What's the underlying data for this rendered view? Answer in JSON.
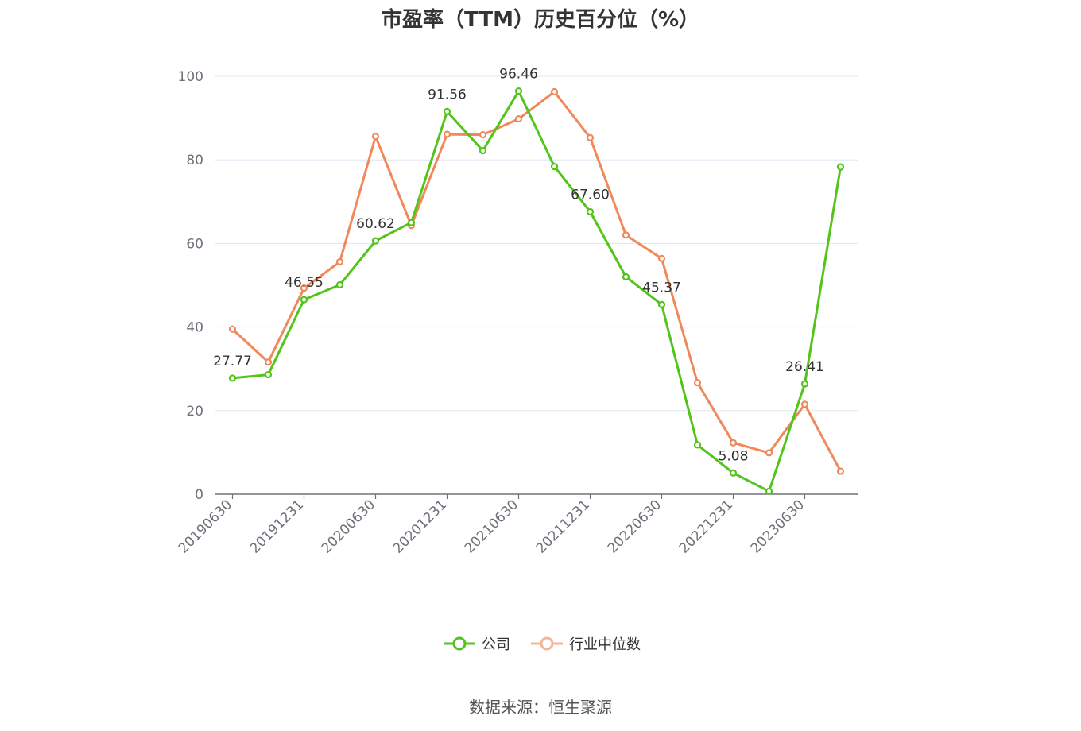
{
  "chart_data": {
    "type": "line",
    "title": "市盈率（TTM）历史百分位（%）",
    "categories": [
      "20190630",
      "20190930",
      "20191231",
      "20200331",
      "20200630",
      "20200930",
      "20201231",
      "20210331",
      "20210630",
      "20210930",
      "20211231",
      "20220331",
      "20220630",
      "20220930",
      "20221231",
      "20230331",
      "20230630",
      "20230930"
    ],
    "tick_labels": [
      "20190630",
      "20191231",
      "20200630",
      "20201231",
      "20210630",
      "20211231",
      "20220630",
      "20221231",
      "20230630"
    ],
    "ylim": [
      0,
      100
    ],
    "yticks": [
      0,
      20,
      40,
      60,
      80,
      100
    ],
    "grid": true,
    "legend_position": "bottom",
    "series": [
      {
        "name": "公司",
        "color": "#52c41a",
        "values": [
          27.77,
          28.6,
          46.55,
          50.1,
          60.62,
          65.0,
          91.56,
          82.2,
          96.46,
          78.4,
          67.6,
          52.0,
          45.37,
          11.8,
          5.08,
          0.7,
          26.41,
          78.3
        ],
        "labels": [
          "27.77",
          "",
          "46.55",
          "",
          "60.62",
          "",
          "91.56",
          "",
          "96.46",
          "",
          "67.60",
          "",
          "45.37",
          "",
          "5.08",
          "",
          "26.41",
          ""
        ]
      },
      {
        "name": "行业中位数",
        "color": "#f0885a",
        "values": [
          39.5,
          31.6,
          49.3,
          55.6,
          85.6,
          64.3,
          86.1,
          86.0,
          89.8,
          96.3,
          85.3,
          62.0,
          56.4,
          26.7,
          12.3,
          9.9,
          21.5,
          5.5
        ]
      }
    ]
  },
  "source_note": "数据来源：恒生聚源"
}
